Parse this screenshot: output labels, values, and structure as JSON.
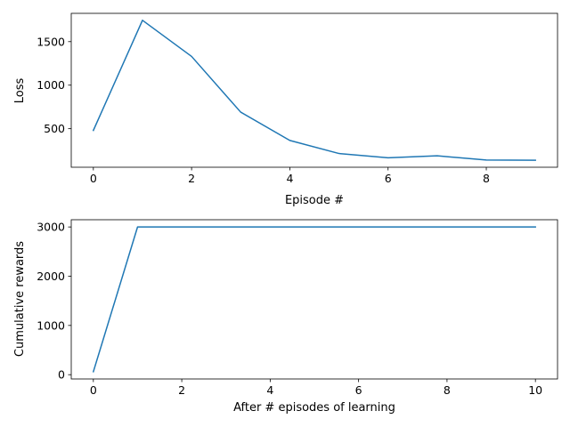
{
  "chart_data": [
    {
      "type": "line",
      "title": "",
      "xlabel": "Episode #",
      "ylabel": "Loss",
      "x": [
        0,
        1,
        2,
        3,
        4,
        5,
        6,
        7,
        8,
        9
      ],
      "series": [
        {
          "values": [
            480,
            1745,
            1330,
            690,
            365,
            215,
            165,
            188,
            140,
            137
          ],
          "color": "#1f77b4"
        }
      ],
      "xlim": [
        -0.45,
        9.45
      ],
      "ylim": [
        57,
        1825
      ],
      "xticks": [
        0,
        2,
        4,
        6,
        8
      ],
      "yticks": [
        500,
        1000,
        1500
      ],
      "grid": false,
      "legend": "none"
    },
    {
      "type": "line",
      "title": "",
      "xlabel": "After # episodes of learning",
      "ylabel": "Cumulative rewards",
      "x": [
        0,
        1,
        2,
        3,
        4,
        5,
        6,
        7,
        8,
        9,
        10
      ],
      "series": [
        {
          "values": [
            60,
            3000,
            3000,
            3000,
            3000,
            3000,
            3000,
            3000,
            3000,
            3000,
            3000
          ],
          "color": "#1f77b4"
        }
      ],
      "xlim": [
        -0.5,
        10.5
      ],
      "ylim": [
        -87,
        3147
      ],
      "xticks": [
        0,
        2,
        4,
        6,
        8,
        10
      ],
      "yticks": [
        0,
        1000,
        2000,
        3000
      ],
      "grid": false,
      "legend": "none"
    }
  ]
}
